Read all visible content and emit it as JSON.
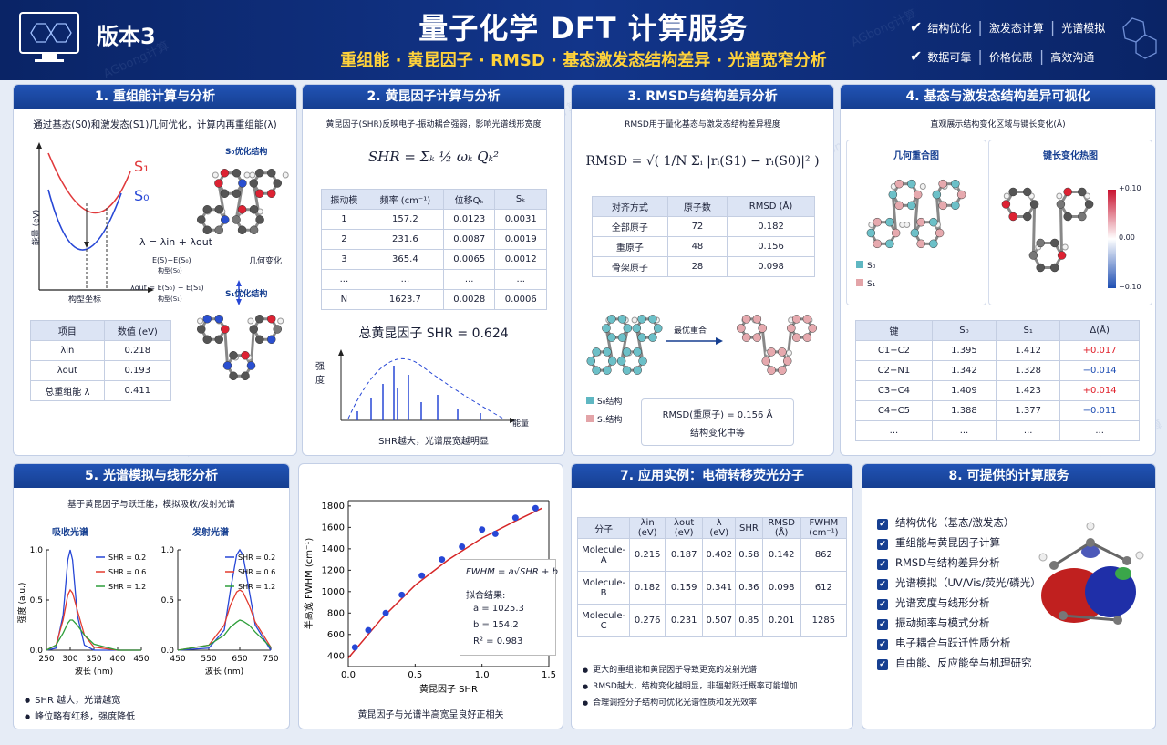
{
  "watermark": "AGbong计算",
  "header": {
    "badge": "版本3",
    "title": "量子化学 DFT 计算服务",
    "subtitle": "重组能 · 黄昆因子 · RMSD · 基态激发态结构差异 · 光谱宽窄分析",
    "tags1": [
      "结构优化",
      "激发态计算",
      "光谱模拟"
    ],
    "tags2": [
      "数据可靠",
      "价格优惠",
      "高效沟通"
    ]
  },
  "p1": {
    "title": "1. 重组能计算与分析",
    "desc": "通过基态(S0)和激发态(S1)几何优化，计算内再重组能(λ)",
    "s1": "S₁",
    "s0": "S₀",
    "ylabel": "能量 (eV)",
    "xlabel": "构型坐标",
    "formula": "λ = λin + λout",
    "lin": "E(S)−E(S₀)",
    "lin_sub": "构型(S₀)",
    "lout": "λout = E(S₀) − E(S₁)",
    "lout_sub": "构型(S₁)",
    "mol0": "S₀优化结构",
    "change": "几何变化",
    "mol1": "S₁优化结构",
    "table": {
      "headers": [
        "项目",
        "数值 (eV)"
      ],
      "rows": [
        [
          "λin",
          "0.218"
        ],
        [
          "λout",
          "0.193"
        ],
        [
          "总重组能 λ",
          "0.411"
        ]
      ]
    }
  },
  "p2": {
    "title": "2. 黄昆因子计算与分析",
    "desc": "黄昆因子(SHR)反映电子-振动耦合强弱，影响光谱线形宽度",
    "formula": "SHR = Σₖ ½ ωₖ Qₖ²",
    "table": {
      "headers": [
        "振动模",
        "频率 (cm⁻¹)",
        "位移Qₖ",
        "Sₖ"
      ],
      "rows": [
        [
          "1",
          "157.2",
          "0.0123",
          "0.0031"
        ],
        [
          "2",
          "231.6",
          "0.0087",
          "0.0019"
        ],
        [
          "3",
          "365.4",
          "0.0065",
          "0.0012"
        ],
        [
          "...",
          "...",
          "...",
          "..."
        ],
        [
          "N",
          "1623.7",
          "0.0028",
          "0.0006"
        ]
      ]
    },
    "total": "总黄昆因子 SHR = 0.624",
    "ylabel": "强度",
    "xlabel": "能量",
    "caption": "SHR越大，光谱展宽越明显"
  },
  "p3": {
    "title": "3. RMSD与结构差异分析",
    "desc": "RMSD用于量化基态与激发态结构差异程度",
    "formula": "RMSD = √( 1/N Σᵢ |rᵢ(S1) − rᵢ(S0)|² )",
    "table": {
      "headers": [
        "对齐方式",
        "原子数",
        "RMSD (Å)"
      ],
      "rows": [
        [
          "全部原子",
          "72",
          "0.182"
        ],
        [
          "重原子",
          "48",
          "0.156"
        ],
        [
          "骨架原子",
          "28",
          "0.098"
        ]
      ]
    },
    "align": "最优重合",
    "leg0": "S₀结构",
    "leg1": "S₁结构",
    "box1": "RMSD(重原子) = 0.156 Å",
    "box2": "结构变化中等"
  },
  "p4": {
    "title": "4. 基态与激发态结构差异可视化",
    "desc": "直观展示结构变化区域与键长变化(Å)",
    "sub1": "几何重合图",
    "sub2": "键长变化热图",
    "leg0": "S₀",
    "leg1": "S₁",
    "cbar": [
      "+0.10",
      "0.00",
      "−0.10"
    ],
    "table": {
      "headers": [
        "键",
        "S₀",
        "S₁",
        "Δ(Å)"
      ],
      "rows": [
        [
          "C1−C2",
          "1.395",
          "1.412",
          "+0.017"
        ],
        [
          "C2−N1",
          "1.342",
          "1.328",
          "−0.014"
        ],
        [
          "C3−C4",
          "1.409",
          "1.423",
          "+0.014"
        ],
        [
          "C4−C5",
          "1.388",
          "1.377",
          "−0.011"
        ],
        [
          "...",
          "...",
          "...",
          "..."
        ]
      ]
    }
  },
  "p5": {
    "title": "5. 光谱模拟与线形分析",
    "desc": "基于黄昆因子与跃迁能，模拟吸收/发射光谱",
    "ylabel": "强度 (a.u.)",
    "xlabel": "波长 (nm)",
    "abs": {
      "label": "吸收光谱",
      "x": [
        250,
        270,
        285,
        295,
        300,
        305,
        315,
        330,
        350,
        400,
        450
      ],
      "series": [
        {
          "name": "SHR = 0.2",
          "color": "#2747d6",
          "values": [
            0,
            0.02,
            0.35,
            0.9,
            1.0,
            0.9,
            0.35,
            0.05,
            0,
            0,
            0
          ]
        },
        {
          "name": "SHR = 0.6",
          "color": "#e33b2f",
          "values": [
            0,
            0.05,
            0.3,
            0.55,
            0.6,
            0.57,
            0.4,
            0.15,
            0.03,
            0,
            0
          ]
        },
        {
          "name": "SHR = 1.2",
          "color": "#2e9e3a",
          "values": [
            0,
            0.05,
            0.17,
            0.27,
            0.3,
            0.3,
            0.25,
            0.15,
            0.06,
            0,
            0
          ]
        }
      ],
      "xlim": [
        250,
        450
      ],
      "xticks": [
        250,
        300,
        350,
        400,
        450
      ],
      "ylim": [
        0,
        1
      ],
      "yticks": [
        {
          "value": 0,
          "label": "0.0"
        },
        {
          "value": 0.5,
          "label": "0.5"
        },
        {
          "value": 1,
          "label": "1.0"
        }
      ]
    },
    "emi": {
      "label": "发射光谱",
      "x": [
        450,
        550,
        600,
        620,
        640,
        650,
        660,
        680,
        700,
        750
      ],
      "series": [
        {
          "name": "SHR = 0.2",
          "color": "#2747d6",
          "values": [
            0,
            0.02,
            0.2,
            0.6,
            0.95,
            1.0,
            0.95,
            0.6,
            0.25,
            0
          ]
        },
        {
          "name": "SHR = 0.6",
          "color": "#e33b2f",
          "values": [
            0,
            0.05,
            0.25,
            0.45,
            0.58,
            0.6,
            0.58,
            0.45,
            0.28,
            0.03
          ]
        },
        {
          "name": "SHR = 1.2",
          "color": "#2e9e3a",
          "values": [
            0,
            0.05,
            0.15,
            0.23,
            0.28,
            0.3,
            0.29,
            0.25,
            0.18,
            0.03
          ]
        }
      ],
      "xlim": [
        450,
        750
      ],
      "xticks": [
        450,
        550,
        650,
        750
      ],
      "ylim": [
        0,
        1
      ],
      "yticks": [
        {
          "value": 0,
          "label": "0.0"
        },
        {
          "value": 0.5,
          "label": "0.5"
        },
        {
          "value": 1,
          "label": "1.0"
        }
      ]
    },
    "bullets": [
      "SHR 越大，光谱越宽",
      "峰位略有红移，强度降低"
    ]
  },
  "p6": {
    "type": "scatter",
    "xlabel": "黄昆因子 SHR",
    "ylabel": "半高宽 FWHM (cm⁻¹)",
    "x": [
      0.05,
      0.15,
      0.28,
      0.4,
      0.55,
      0.7,
      0.85,
      1.0,
      1.1,
      1.25,
      1.4
    ],
    "values": [
      480,
      640,
      800,
      970,
      1150,
      1300,
      1420,
      1580,
      1540,
      1690,
      1780
    ],
    "color": "#2747d6",
    "fit": {
      "x": [
        0,
        0.25,
        0.5,
        0.75,
        1.0,
        1.25,
        1.45
      ],
      "values": [
        380,
        750,
        1060,
        1300,
        1500,
        1660,
        1780
      ],
      "color": "#d62728"
    },
    "xlim": [
      0,
      1.5
    ],
    "xticks": [
      {
        "value": 0,
        "label": "0.0"
      },
      0.5,
      {
        "value": 1,
        "label": "1.0"
      },
      1.5
    ],
    "ylim": [
      300,
      1850
    ],
    "yticks": [
      400,
      600,
      800,
      1000,
      1200,
      1400,
      1600,
      1800
    ],
    "box": [
      "FWHM = a√SHR + b",
      "拟合结果:",
      "a = 1025.3",
      "b = 154.2",
      "R² = 0.983"
    ],
    "caption": "黄昆因子与光谱半高宽呈良好正相关"
  },
  "p7": {
    "title": "7. 应用实例：电荷转移荧光分子",
    "table": {
      "headers": [
        "分子",
        "λin (eV)",
        "λout (eV)",
        "λ (eV)",
        "SHR",
        "RMSD (Å)",
        "FWHM (cm⁻¹)"
      ],
      "rows": [
        [
          "Molecule-A",
          "0.215",
          "0.187",
          "0.402",
          "0.58",
          "0.142",
          "862"
        ],
        [
          "Molecule-B",
          "0.182",
          "0.159",
          "0.341",
          "0.36",
          "0.098",
          "612"
        ],
        [
          "Molecule-C",
          "0.276",
          "0.231",
          "0.507",
          "0.85",
          "0.201",
          "1285"
        ]
      ]
    },
    "bullets": [
      "更大的重组能和黄昆因子导致更宽的发射光谱",
      "RMSD越大，结构变化越明显，非辐射跃迁概率可能增加",
      "合理调控分子结构可优化光谱性质和发光效率"
    ]
  },
  "p8": {
    "title": "8. 可提供的计算服务",
    "items": [
      "结构优化（基态/激发态）",
      "重组能与黄昆因子计算",
      "RMSD与结构差异分析",
      "光谱模拟（UV/Vis/荧光/磷光）",
      "光谱宽度与线形分析",
      "振动频率与模式分析",
      "电子耦合与跃迁性质分析",
      "自由能、反应能垒与机理研究"
    ]
  }
}
